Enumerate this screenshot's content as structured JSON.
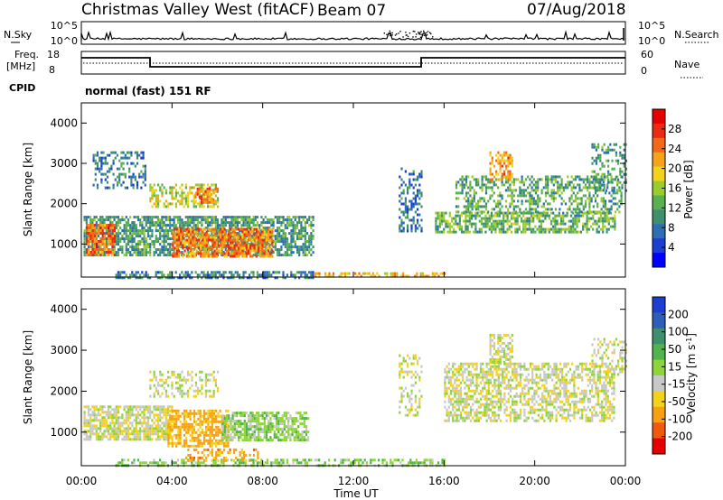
{
  "header": {
    "station": "Christmas Valley West (fitACF)",
    "beam": "Beam 07",
    "date": "07/Aug/2018"
  },
  "top_panels": {
    "nsky_label": "N.Sky",
    "nsky_ticks": [
      "10^5",
      "10^0"
    ],
    "nsearch_label": "N.Search",
    "nsearch_ticks": [
      "10^5",
      "10^0"
    ],
    "freq_label": "Freq.",
    "freq_unit": "[MHz]",
    "freq_ticks": [
      "18",
      "8"
    ],
    "nave_label": "Nave",
    "nave_ticks": [
      "60",
      "0"
    ],
    "cpid_label": "CPID",
    "cpid_value": "normal (fast) 151 RF"
  },
  "colors": {
    "power": [
      "#0000ff",
      "#1b3fd2",
      "#2e6fb4",
      "#3f8f6e",
      "#58b050",
      "#9ccc2c",
      "#f2d21a",
      "#f5a31a",
      "#f26a16",
      "#ea2a12",
      "#e60000"
    ],
    "velocity": [
      "#e60000",
      "#f05a0e",
      "#f6a012",
      "#f2d21a",
      "#c8c8c8",
      "#8fd438",
      "#4fb44b",
      "#3f8f6e",
      "#2e5fb8",
      "#1b3fd2"
    ],
    "ground_scatter": "#c8c8c8"
  },
  "chart_data": [
    {
      "type": "heatmap",
      "title": "",
      "xlabel": "",
      "ylabel": "Slant Range [km]",
      "ylim": [
        180,
        4500
      ],
      "yticks": [
        "4000",
        "3000",
        "2000",
        "1000"
      ],
      "ytick_values": [
        4000,
        3000,
        2000,
        1000
      ],
      "xlim_hours": [
        0,
        24
      ],
      "colorbar_label": "Power [dB]",
      "colorbar_ticks": [
        "28",
        "24",
        "20",
        "16",
        "12",
        "8",
        "4"
      ],
      "colorbar_range": [
        0,
        30
      ],
      "regions": [
        {
          "t": [
            0.1,
            10.2
          ],
          "r": [
            700,
            1700
          ],
          "level": 10,
          "density": 0.7
        },
        {
          "t": [
            0.2,
            1.5
          ],
          "r": [
            750,
            1500
          ],
          "level": 24,
          "density": 0.8
        },
        {
          "t": [
            4.0,
            8.4
          ],
          "r": [
            700,
            1400
          ],
          "level": 23,
          "density": 0.75
        },
        {
          "t": [
            0.5,
            2.8
          ],
          "r": [
            2400,
            3300
          ],
          "level": 7,
          "density": 0.35
        },
        {
          "t": [
            3.0,
            6.0
          ],
          "r": [
            1900,
            2500
          ],
          "level": 16,
          "density": 0.55
        },
        {
          "t": [
            5.0,
            6.0
          ],
          "r": [
            2000,
            2400
          ],
          "level": 23,
          "density": 0.6
        },
        {
          "t": [
            1.5,
            10.2
          ],
          "r": [
            190,
            330
          ],
          "level": 8,
          "density": 0.6
        },
        {
          "t": [
            10.2,
            16.0
          ],
          "r": [
            190,
            300
          ],
          "level": 20,
          "density": 0.45
        },
        {
          "t": [
            14.0,
            15.0
          ],
          "r": [
            1300,
            2900
          ],
          "level": 7,
          "density": 0.4
        },
        {
          "t": [
            15.6,
            23.5
          ],
          "r": [
            1300,
            1800
          ],
          "level": 12,
          "density": 0.65
        },
        {
          "t": [
            16.5,
            23.8
          ],
          "r": [
            1800,
            2700
          ],
          "level": 11,
          "density": 0.45
        },
        {
          "t": [
            18.0,
            19.0
          ],
          "r": [
            2600,
            3300
          ],
          "level": 21,
          "density": 0.6
        },
        {
          "t": [
            22.5,
            24.0
          ],
          "r": [
            2300,
            3500
          ],
          "level": 10,
          "density": 0.4
        }
      ]
    },
    {
      "type": "heatmap",
      "title": "",
      "xlabel": "Time UT",
      "ylabel": "Slant Range [km]",
      "ylim": [
        180,
        4500
      ],
      "yticks": [
        "4000",
        "3000",
        "2000",
        "1000"
      ],
      "ytick_values": [
        4000,
        3000,
        2000,
        1000
      ],
      "xticks": [
        "00:00",
        "04:00",
        "08:00",
        "12:00",
        "16:00",
        "20:00",
        "00:00"
      ],
      "xtick_hours": [
        0,
        4,
        8,
        12,
        16,
        20,
        24
      ],
      "xlim_hours": [
        0,
        24
      ],
      "colorbar_label": "Velocity [m s",
      "colorbar_label_superscript": "-1",
      "colorbar_label_suffix": "]",
      "colorbar_ticks": [
        "200",
        "100",
        "50",
        "15",
        "-15",
        "-50",
        "-100",
        "-200"
      ],
      "colorbar_range": [
        -250,
        250
      ],
      "regions": [
        {
          "t": [
            0.1,
            4.0
          ],
          "r": [
            800,
            1650
          ],
          "value": 0,
          "density": 0.75
        },
        {
          "t": [
            3.8,
            6.5
          ],
          "r": [
            650,
            1550
          ],
          "value": -60,
          "density": 0.7
        },
        {
          "t": [
            6.2,
            10.0
          ],
          "r": [
            800,
            1500
          ],
          "value": 35,
          "density": 0.7
        },
        {
          "t": [
            3.0,
            6.0
          ],
          "r": [
            1900,
            2500
          ],
          "value": 0,
          "density": 0.45
        },
        {
          "t": [
            1.5,
            16.0
          ],
          "r": [
            190,
            350
          ],
          "value": 40,
          "density": 0.5
        },
        {
          "t": [
            4.5,
            8.0
          ],
          "r": [
            300,
            600
          ],
          "value": -70,
          "density": 0.35
        },
        {
          "t": [
            16.0,
            23.5
          ],
          "r": [
            1300,
            2700
          ],
          "value": 0,
          "density": 0.55
        },
        {
          "t": [
            18.0,
            19.0
          ],
          "r": [
            2700,
            3400
          ],
          "value": 0,
          "density": 0.55
        },
        {
          "t": [
            22.5,
            24.0
          ],
          "r": [
            2400,
            3300
          ],
          "value": 0,
          "density": 0.35
        },
        {
          "t": [
            14.0,
            15.0
          ],
          "r": [
            1400,
            2900
          ],
          "value": 0,
          "density": 0.35
        }
      ]
    }
  ]
}
